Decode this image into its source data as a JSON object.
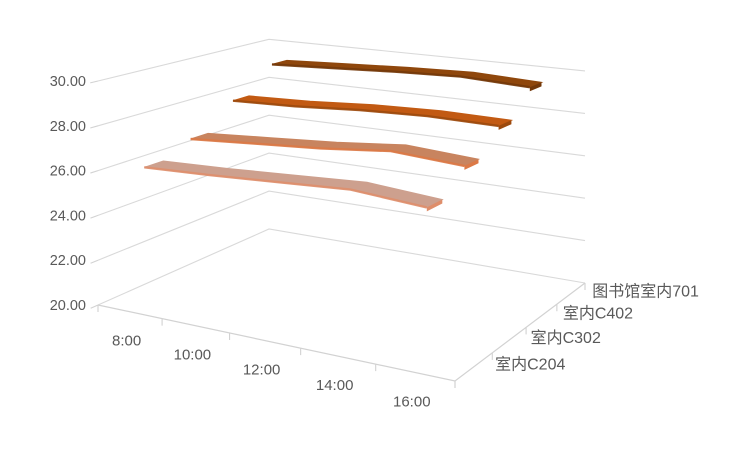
{
  "chart_data": {
    "type": "line",
    "subtype": "3d-line-ribbon",
    "title": "",
    "xlabel": "",
    "ylabel": "",
    "categories": [
      "8:00",
      "10:00",
      "12:00",
      "14:00",
      "16:00"
    ],
    "series": [
      {
        "name": "室内C204",
        "values": [
          26.15,
          26.25,
          26.4,
          26.55,
          26.3
        ],
        "color": "#CDA08E",
        "edge_color": "#DF8E6B"
      },
      {
        "name": "室内C302",
        "values": [
          26.75,
          26.95,
          27.15,
          27.45,
          27.25
        ],
        "color": "#C8845F",
        "edge_color": "#DC7946"
      },
      {
        "name": "室内C402",
        "values": [
          27.95,
          28.05,
          28.25,
          28.35,
          28.3
        ],
        "color": "#C25A13",
        "edge_color": "#9C4A0E"
      },
      {
        "name": "图书馆室内701",
        "values": [
          29.2,
          29.35,
          29.5,
          29.6,
          29.45
        ],
        "color": "#8F470C",
        "edge_color": "#73380A"
      }
    ],
    "value_axis": {
      "min": 20,
      "max": 30,
      "step": 2,
      "tick_labels": [
        "20.00",
        "22.00",
        "24.00",
        "26.00",
        "28.00",
        "30.00"
      ]
    },
    "grid": true,
    "legend_position": "none",
    "gridline_color": "#D9D9D9",
    "axis_color": "#D2D2D2",
    "label_color": "#595959"
  }
}
